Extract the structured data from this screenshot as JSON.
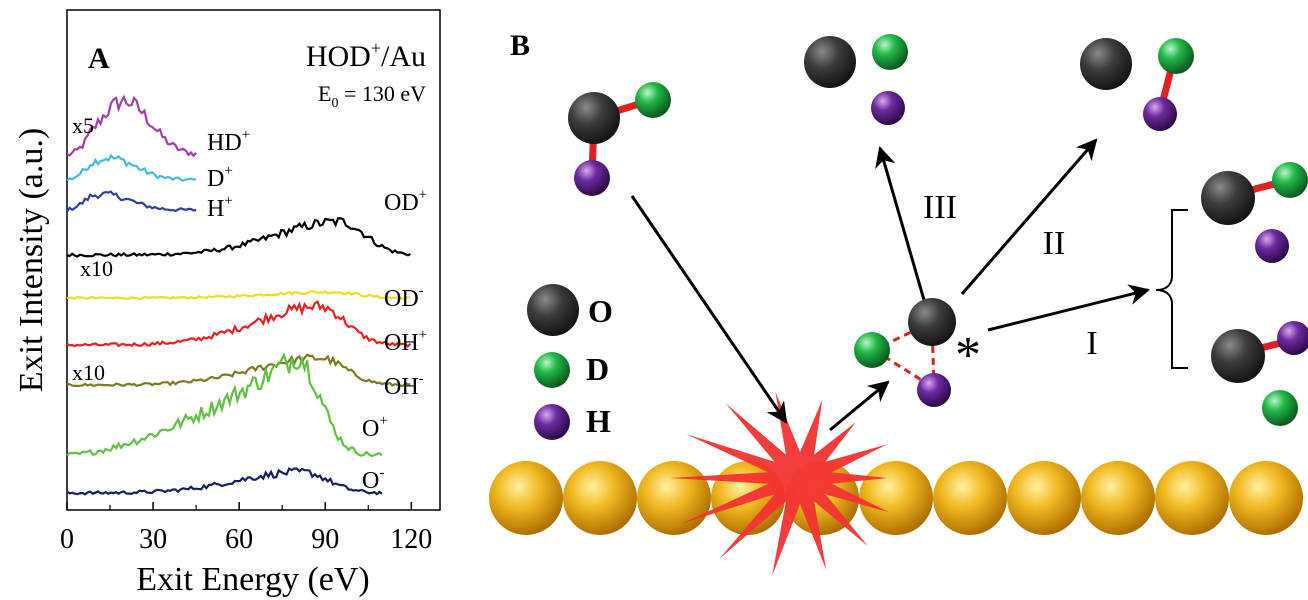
{
  "panel_a": {
    "label": "A",
    "title_main": "HOD",
    "title_sup": "+",
    "title_tail": "/Au",
    "energy_main": "E",
    "energy_sub": "0",
    "energy_tail": " = 130 eV",
    "xlabel": "Exit Energy (eV)",
    "ylabel": "Exit Intensity (a.u.)",
    "multipliers": [
      "x5",
      "x10",
      "x10"
    ]
  },
  "panel_b": {
    "label": "B",
    "legend": [
      "O",
      "D",
      "H"
    ],
    "pathways": [
      "III",
      "II",
      "I"
    ],
    "excited_marker": "*"
  },
  "colors": {
    "HD+": "#a040a8",
    "D+": "#40bcd8",
    "H+": "#2e3fa0",
    "OD+": "#000000",
    "OD-": "#e8e020",
    "OH+": "#e82020",
    "OH-": "#7a7a20",
    "O+": "#60c040",
    "O-": "#1a1f60",
    "oxygen": "#3a3a3c",
    "deuterium": "#20b040",
    "hydrogen": "#6a2a9a",
    "gold": "#e8b020",
    "impact": "#f03030"
  },
  "chart_data": {
    "type": "line",
    "x_axis": {
      "label": "Exit Energy (eV)",
      "range": [
        0,
        130
      ],
      "ticks": [
        0,
        30,
        60,
        90,
        120
      ]
    },
    "y_axis": {
      "label": "Exit Intensity (a.u.)",
      "ticks_shown": false
    },
    "series": [
      {
        "name": "HD+",
        "multiplier": "x5",
        "x_range": [
          0,
          45
        ],
        "peak_x": 20,
        "peak_height": 0.9,
        "shape": "low-energy"
      },
      {
        "name": "D+",
        "x_range": [
          0,
          45
        ],
        "peak_x": 15,
        "peak_height": 0.55,
        "shape": "low-energy"
      },
      {
        "name": "H+",
        "x_range": [
          0,
          45
        ],
        "peak_x": 13,
        "peak_height": 0.45,
        "shape": "low-energy"
      },
      {
        "name": "OD+",
        "x_range": [
          0,
          120
        ],
        "peak_x": 95,
        "peak_height": 0.95,
        "shape": "high-energy"
      },
      {
        "name": "OD-",
        "multiplier": "x10",
        "x_range": [
          0,
          120
        ],
        "peak_x": 92,
        "peak_height": 0.3,
        "shape": "high-energy"
      },
      {
        "name": "OH+",
        "x_range": [
          0,
          120
        ],
        "peak_x": 88,
        "peak_height": 1.1,
        "shape": "high-energy"
      },
      {
        "name": "OH-",
        "multiplier": "x10",
        "x_range": [
          0,
          120
        ],
        "peak_x": 88,
        "peak_height": 0.9,
        "shape": "high-energy"
      },
      {
        "name": "O+",
        "x_range": [
          0,
          110
        ],
        "peak_x": 80,
        "peak_height": 1.8,
        "shape": "broad"
      },
      {
        "name": "O-",
        "x_range": [
          0,
          110
        ],
        "peak_x": 82,
        "peak_height": 0.6,
        "shape": "high-energy"
      }
    ]
  }
}
